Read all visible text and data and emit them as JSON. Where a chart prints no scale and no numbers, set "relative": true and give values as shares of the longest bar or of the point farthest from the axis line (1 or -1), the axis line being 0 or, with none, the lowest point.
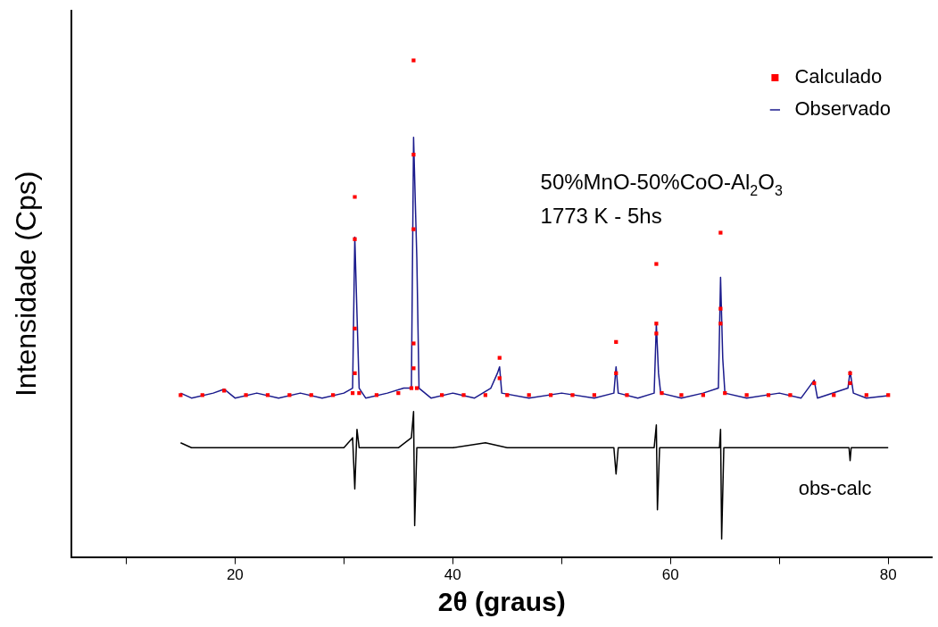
{
  "chart_data": {
    "type": "line",
    "relative": true,
    "xlabel": "2θ (graus)",
    "ylabel": "Intensidade (Cps)",
    "xlim": [
      5,
      84
    ],
    "xticks": [
      {
        "value": 10,
        "label": null
      },
      20,
      {
        "value": 30,
        "label": null
      },
      40,
      {
        "value": 50,
        "label": null
      },
      60,
      {
        "value": 70,
        "label": null
      },
      80
    ],
    "grid": false,
    "legend": "top right",
    "tick_labels": "x",
    "annotations": [
      "50%MnO-50%CoO-Al$_{2}$O$_{3}$",
      "1773 K - 5hs",
      "obs-calc"
    ],
    "series": [
      {
        "name": "Observado",
        "color": "#1a1a8c",
        "x": [
          15,
          16,
          18,
          19,
          20,
          22,
          24,
          26,
          28,
          30,
          30.8,
          31.0,
          31.2,
          31.4,
          32,
          34,
          35.5,
          36.2,
          36.4,
          36.7,
          36.9,
          38,
          40,
          42,
          43.5,
          44.1,
          44.3,
          44.5,
          47,
          50,
          53,
          54.8,
          55.0,
          55.2,
          57,
          58.5,
          58.7,
          58.9,
          59.1,
          61,
          63,
          64.4,
          64.6,
          64.8,
          65.0,
          67,
          70,
          72,
          73.2,
          73.5,
          76.3,
          76.5,
          76.8,
          78,
          80
        ],
        "values": [
          0.33,
          0.32,
          0.33,
          0.338,
          0.32,
          0.33,
          0.32,
          0.33,
          0.32,
          0.33,
          0.34,
          0.644,
          0.49,
          0.34,
          0.32,
          0.33,
          0.34,
          0.34,
          0.845,
          0.6,
          0.34,
          0.32,
          0.33,
          0.32,
          0.34,
          0.37,
          0.383,
          0.33,
          0.32,
          0.33,
          0.32,
          0.33,
          0.383,
          0.33,
          0.32,
          0.33,
          0.469,
          0.37,
          0.33,
          0.32,
          0.33,
          0.34,
          0.563,
          0.4,
          0.33,
          0.32,
          0.33,
          0.32,
          0.356,
          0.32,
          0.34,
          0.374,
          0.33,
          0.32,
          0.325
        ]
      },
      {
        "name": "Calculado",
        "type": "scatter",
        "marker": "square",
        "color": "#ff0000",
        "x": [
          15,
          17,
          19,
          21,
          23,
          25,
          27,
          29,
          30.8,
          31.0,
          31.0,
          31.0,
          31.0,
          31.4,
          33,
          35,
          36.2,
          36.4,
          36.4,
          36.4,
          36.4,
          36.4,
          36.7,
          39,
          41,
          43,
          44.3,
          44.3,
          45,
          47,
          49,
          51,
          53,
          55.0,
          55.0,
          56,
          58.7,
          58.7,
          58.7,
          59.2,
          61,
          63,
          64.6,
          64.6,
          64.6,
          65,
          67,
          69,
          71,
          73.2,
          75,
          76.5,
          76.5,
          78,
          80
        ],
        "values": [
          0.326,
          0.326,
          0.335,
          0.326,
          0.326,
          0.326,
          0.326,
          0.326,
          0.33,
          0.725,
          0.64,
          0.46,
          0.37,
          0.33,
          0.326,
          0.33,
          0.34,
          1.0,
          0.81,
          0.66,
          0.43,
          0.38,
          0.34,
          0.326,
          0.326,
          0.326,
          0.401,
          0.36,
          0.326,
          0.326,
          0.326,
          0.326,
          0.326,
          0.433,
          0.37,
          0.326,
          0.59,
          0.47,
          0.45,
          0.33,
          0.326,
          0.326,
          0.653,
          0.5,
          0.47,
          0.33,
          0.326,
          0.326,
          0.326,
          0.35,
          0.326,
          0.37,
          0.35,
          0.326,
          0.326
        ]
      },
      {
        "color": "#000000",
        "x": [
          15,
          16,
          20,
          25,
          30,
          30.8,
          31.0,
          31.2,
          31.4,
          35,
          36.2,
          36.4,
          36.5,
          36.7,
          40,
          43,
          45,
          50,
          54.8,
          55.0,
          55.2,
          58.5,
          58.7,
          58.8,
          59.0,
          62,
          64.5,
          64.6,
          64.7,
          64.9,
          70,
          76.4,
          76.5,
          76.6,
          80
        ],
        "values": [
          0.23,
          0.22,
          0.22,
          0.22,
          0.22,
          0.24,
          0.137,
          0.257,
          0.22,
          0.22,
          0.24,
          0.293,
          0.063,
          0.22,
          0.22,
          0.23,
          0.22,
          0.22,
          0.22,
          0.167,
          0.22,
          0.22,
          0.266,
          0.095,
          0.22,
          0.22,
          0.22,
          0.257,
          0.036,
          0.22,
          0.22,
          0.22,
          0.194,
          0.22,
          0.22
        ]
      }
    ]
  }
}
